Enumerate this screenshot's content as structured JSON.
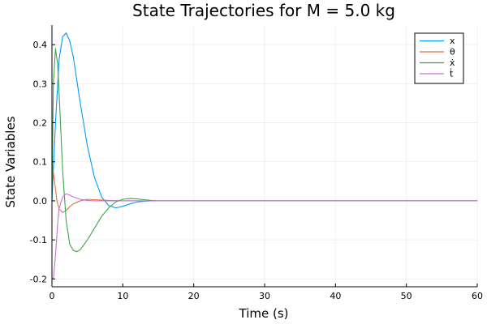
{
  "chart_data": {
    "type": "line",
    "title": "State Trajectories for M = 5.0 kg",
    "xlabel": "Time (s)",
    "ylabel": "State Variables",
    "xlim": [
      0,
      60
    ],
    "ylim": [
      -0.22,
      0.45
    ],
    "xticks": [
      0,
      10,
      20,
      30,
      40,
      50,
      60
    ],
    "xtick_labels": [
      "0",
      "10",
      "20",
      "30",
      "40",
      "50",
      "60"
    ],
    "yticks": [
      -0.2,
      -0.1,
      0.0,
      0.1,
      0.2,
      0.3,
      0.4
    ],
    "ytick_labels": [
      "-0.2",
      "-0.1",
      "0.0",
      "0.1",
      "0.2",
      "0.3",
      "0.4"
    ],
    "grid": true,
    "legend_position": "top-right",
    "series": [
      {
        "name": "x",
        "color": "#009AFA",
        "x": [
          0,
          0.5,
          1,
          1.5,
          2,
          2.5,
          3,
          4,
          5,
          6,
          7,
          8,
          9,
          10,
          11,
          12,
          13,
          14,
          15,
          20,
          30,
          40,
          50,
          60
        ],
        "y": [
          0.0,
          0.2,
          0.36,
          0.42,
          0.43,
          0.41,
          0.37,
          0.25,
          0.14,
          0.06,
          0.01,
          -0.012,
          -0.018,
          -0.014,
          -0.008,
          -0.003,
          -0.001,
          0.0,
          0.0,
          0.0,
          0.0,
          0.0,
          0.0,
          0.0
        ]
      },
      {
        "name": "θ",
        "color": "#E36F47",
        "x": [
          0,
          0.3,
          0.7,
          1,
          1.5,
          2,
          2.5,
          3,
          4,
          5,
          6,
          7,
          8,
          10,
          15,
          20,
          30,
          40,
          50,
          60
        ],
        "y": [
          0.1,
          0.06,
          0.0,
          -0.02,
          -0.03,
          -0.025,
          -0.015,
          -0.008,
          0.0,
          0.004,
          0.003,
          0.002,
          0.001,
          0.0,
          0.0,
          0.0,
          0.0,
          0.0,
          0.0,
          0.0
        ]
      },
      {
        "name": "ẋ",
        "color": "#3EA44E",
        "x": [
          0,
          0.2,
          0.5,
          0.8,
          1,
          1.5,
          2,
          2.5,
          3,
          3.5,
          4,
          5,
          6,
          7,
          8,
          9,
          10,
          11,
          12,
          13,
          14,
          15,
          20,
          30,
          40,
          50,
          60
        ],
        "y": [
          0.0,
          0.3,
          0.39,
          0.35,
          0.28,
          0.08,
          -0.05,
          -0.11,
          -0.127,
          -0.13,
          -0.125,
          -0.1,
          -0.07,
          -0.04,
          -0.018,
          -0.003,
          0.004,
          0.006,
          0.005,
          0.003,
          0.001,
          0.0,
          0.0,
          0.0,
          0.0,
          0.0,
          0.0
        ]
      },
      {
        "name": "ṫ",
        "color": "#C371D2",
        "x": [
          0,
          0.2,
          0.5,
          0.8,
          1,
          1.5,
          2,
          2.5,
          3,
          4,
          5,
          6,
          7,
          8,
          10,
          15,
          20,
          30,
          40,
          50,
          60
        ],
        "y": [
          -0.2,
          -0.2,
          -0.14,
          -0.06,
          -0.02,
          0.01,
          0.018,
          0.015,
          0.01,
          0.004,
          0.001,
          0.0,
          0.0,
          0.0,
          0.0,
          0.0,
          0.0,
          0.0,
          0.0,
          0.0,
          0.0
        ]
      }
    ]
  }
}
